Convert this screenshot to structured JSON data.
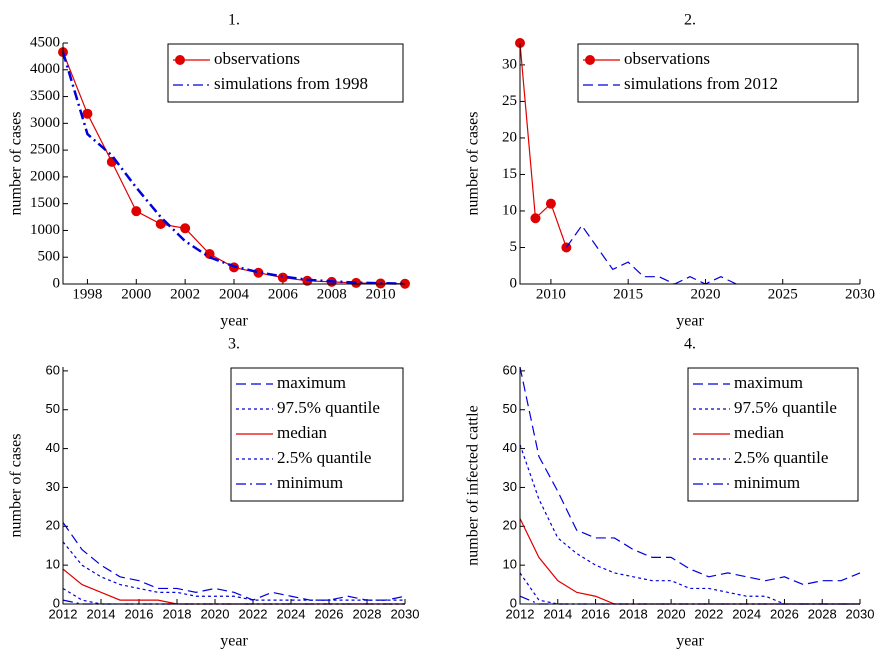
{
  "chart_data": [
    {
      "type": "line",
      "title": "1.",
      "x_label": "year",
      "y_label": "number of cases",
      "xlim": [
        1997,
        2011
      ],
      "xticks": [
        1998,
        2000,
        2002,
        2004,
        2006,
        2008,
        2010
      ],
      "ylim": [
        0,
        4500
      ],
      "yticks": [
        0,
        500,
        1000,
        1500,
        2000,
        2500,
        3000,
        3500,
        4000,
        4500
      ],
      "legend": "upper right",
      "series": [
        {
          "name": "observations",
          "color": "#e00000",
          "dash": "solid",
          "marker": "circle",
          "x": [
            1997,
            1998,
            1999,
            2000,
            2001,
            2002,
            2003,
            2004,
            2005,
            2006,
            2007,
            2008,
            2009,
            2010,
            2011
          ],
          "values": [
            4330,
            3180,
            2280,
            1360,
            1120,
            1040,
            560,
            310,
            210,
            120,
            60,
            40,
            20,
            10,
            5
          ]
        },
        {
          "name": "simulations from 1998",
          "color": "#0000dd",
          "dash": "dashdot",
          "marker": "none",
          "x": [
            1997,
            1998,
            1999,
            2000,
            2001,
            2002,
            2003,
            2004,
            2005,
            2006,
            2007,
            2008,
            2009,
            2010,
            2011
          ],
          "values": [
            4330,
            2800,
            2400,
            1800,
            1250,
            800,
            500,
            330,
            220,
            140,
            80,
            50,
            25,
            15,
            8
          ]
        }
      ]
    },
    {
      "type": "line",
      "title": "2.",
      "x_label": "year",
      "y_label": "number of cases",
      "xlim": [
        2008,
        2030
      ],
      "xticks": [
        2010,
        2015,
        2020,
        2025,
        2030
      ],
      "ylim": [
        0,
        33
      ],
      "yticks": [
        0,
        5,
        10,
        15,
        20,
        25,
        30
      ],
      "legend": "upper right",
      "series": [
        {
          "name": "observations",
          "color": "#e00000",
          "dash": "solid",
          "marker": "circle",
          "x": [
            2008,
            2009,
            2010,
            2011
          ],
          "values": [
            33,
            9,
            11,
            5
          ]
        },
        {
          "name": "simulations from 2012",
          "color": "#0000dd",
          "dash": "dashed",
          "marker": "none",
          "x": [
            2011,
            2012,
            2013,
            2014,
            2015,
            2016,
            2017,
            2018,
            2019,
            2020,
            2021,
            2022
          ],
          "values": [
            5,
            8,
            5,
            2,
            3,
            1,
            1,
            0,
            1,
            0,
            1,
            0
          ]
        }
      ]
    },
    {
      "type": "line",
      "title": "3.",
      "x_label": "year",
      "y_label": "number of cases",
      "xlim": [
        2012,
        2030
      ],
      "xticks": [
        2012,
        2014,
        2016,
        2018,
        2020,
        2022,
        2024,
        2026,
        2028,
        2030
      ],
      "ylim": [
        0,
        61
      ],
      "yticks": [
        0,
        10,
        20,
        30,
        40,
        50,
        60
      ],
      "legend": "upper right",
      "series": [
        {
          "name": "maximum",
          "color": "#0000dd",
          "dash": "dashed",
          "marker": "none",
          "x": [
            2012,
            2013,
            2014,
            2015,
            2016,
            2017,
            2018,
            2019,
            2020,
            2021,
            2022,
            2023,
            2024,
            2025,
            2026,
            2027,
            2028,
            2029,
            2030
          ],
          "values": [
            21,
            14,
            10,
            7,
            6,
            4,
            4,
            3,
            4,
            3,
            1,
            3,
            2,
            1,
            1,
            2,
            1,
            1,
            2
          ]
        },
        {
          "name": "97.5% quantile",
          "color": "#0000dd",
          "dash": "dotted",
          "marker": "none",
          "x": [
            2012,
            2013,
            2014,
            2015,
            2016,
            2017,
            2018,
            2019,
            2020,
            2021,
            2022,
            2023,
            2024,
            2025,
            2026,
            2027,
            2028,
            2029,
            2030
          ],
          "values": [
            16,
            10,
            7,
            5,
            4,
            3,
            3,
            2,
            2,
            2,
            1,
            1,
            1,
            1,
            1,
            1,
            1,
            1,
            1
          ]
        },
        {
          "name": "median",
          "color": "#e00000",
          "dash": "solid",
          "marker": "none",
          "x": [
            2012,
            2013,
            2014,
            2015,
            2016,
            2017,
            2018,
            2019,
            2020,
            2021,
            2022,
            2023,
            2024,
            2025,
            2026,
            2027,
            2028,
            2029,
            2030
          ],
          "values": [
            9,
            5,
            3,
            1,
            1,
            1,
            0,
            0,
            0,
            0,
            0,
            0,
            0,
            0,
            0,
            0,
            0,
            0,
            0
          ]
        },
        {
          "name": "2.5% quantile",
          "color": "#0000dd",
          "dash": "dotted",
          "marker": "none",
          "x": [
            2012,
            2013,
            2014,
            2015,
            2016,
            2017,
            2018,
            2019,
            2020,
            2021,
            2022,
            2023,
            2024,
            2025,
            2026,
            2027,
            2028,
            2029,
            2030
          ],
          "values": [
            4,
            1,
            0,
            0,
            0,
            0,
            0,
            0,
            0,
            0,
            0,
            0,
            0,
            0,
            0,
            0,
            0,
            0,
            0
          ]
        },
        {
          "name": "minimum",
          "color": "#0000dd",
          "dash": "dashdot",
          "marker": "none",
          "x": [
            2012,
            2013,
            2014,
            2015,
            2016,
            2017,
            2018,
            2019,
            2020,
            2021,
            2022,
            2023,
            2024,
            2025,
            2026,
            2027,
            2028,
            2029,
            2030
          ],
          "values": [
            1,
            0,
            0,
            0,
            0,
            0,
            0,
            0,
            0,
            0,
            0,
            0,
            0,
            0,
            0,
            0,
            0,
            0,
            0
          ]
        }
      ]
    },
    {
      "type": "line",
      "title": "4.",
      "x_label": "year",
      "y_label": "number of infected cattle",
      "xlim": [
        2012,
        2030
      ],
      "xticks": [
        2012,
        2014,
        2016,
        2018,
        2020,
        2022,
        2024,
        2026,
        2028,
        2030
      ],
      "ylim": [
        0,
        61
      ],
      "yticks": [
        0,
        10,
        20,
        30,
        40,
        50,
        60
      ],
      "legend": "upper right",
      "series": [
        {
          "name": "maximum",
          "color": "#0000dd",
          "dash": "dashed",
          "marker": "none",
          "x": [
            2012,
            2013,
            2014,
            2015,
            2016,
            2017,
            2018,
            2019,
            2020,
            2021,
            2022,
            2023,
            2024,
            2025,
            2026,
            2027,
            2028,
            2029,
            2030
          ],
          "values": [
            61,
            38,
            29,
            19,
            17,
            17,
            14,
            12,
            12,
            9,
            7,
            8,
            7,
            6,
            7,
            5,
            6,
            6,
            8
          ]
        },
        {
          "name": "97.5% quantile",
          "color": "#0000dd",
          "dash": "dotted",
          "marker": "none",
          "x": [
            2012,
            2013,
            2014,
            2015,
            2016,
            2017,
            2018,
            2019,
            2020,
            2021,
            2022,
            2023,
            2024,
            2025,
            2026,
            2027,
            2028,
            2029,
            2030
          ],
          "values": [
            41,
            27,
            17,
            13,
            10,
            8,
            7,
            6,
            6,
            4,
            4,
            3,
            2,
            2,
            0,
            0,
            0,
            0,
            0
          ]
        },
        {
          "name": "median",
          "color": "#e00000",
          "dash": "solid",
          "marker": "none",
          "x": [
            2012,
            2013,
            2014,
            2015,
            2016,
            2017,
            2018,
            2019,
            2020,
            2021,
            2022,
            2023,
            2024,
            2025,
            2026,
            2027,
            2028,
            2029,
            2030
          ],
          "values": [
            22,
            12,
            6,
            3,
            2,
            0,
            0,
            0,
            0,
            0,
            0,
            0,
            0,
            0,
            0,
            0,
            0,
            0,
            0
          ]
        },
        {
          "name": "2.5% quantile",
          "color": "#0000dd",
          "dash": "dotted",
          "marker": "none",
          "x": [
            2012,
            2013,
            2014,
            2015,
            2016,
            2017,
            2018,
            2019,
            2020,
            2021,
            2022,
            2023,
            2024,
            2025,
            2026,
            2027,
            2028,
            2029,
            2030
          ],
          "values": [
            8,
            1,
            0,
            0,
            0,
            0,
            0,
            0,
            0,
            0,
            0,
            0,
            0,
            0,
            0,
            0,
            0,
            0,
            0
          ]
        },
        {
          "name": "minimum",
          "color": "#0000dd",
          "dash": "dashdot",
          "marker": "none",
          "x": [
            2012,
            2013,
            2014,
            2015,
            2016,
            2017,
            2018,
            2019,
            2020,
            2021,
            2022,
            2023,
            2024,
            2025,
            2026,
            2027,
            2028,
            2029,
            2030
          ],
          "values": [
            2,
            0,
            0,
            0,
            0,
            0,
            0,
            0,
            0,
            0,
            0,
            0,
            0,
            0,
            0,
            0,
            0,
            0,
            0
          ]
        }
      ]
    }
  ]
}
